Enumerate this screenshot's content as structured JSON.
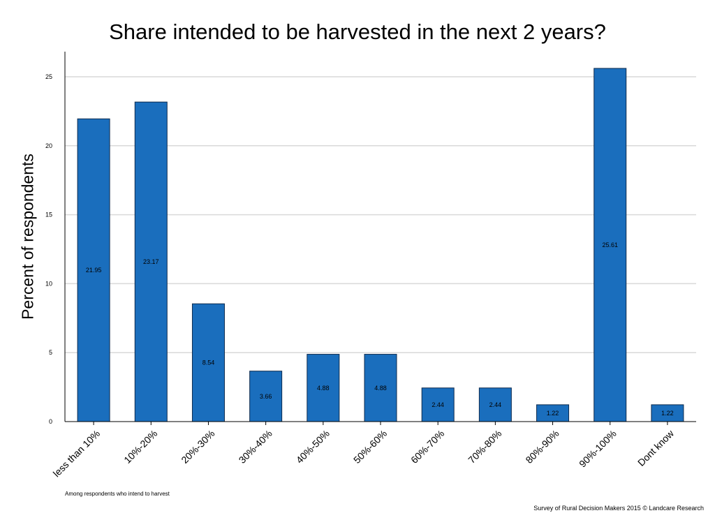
{
  "chart_data": {
    "type": "bar",
    "title": "Share intended to be harvested in the next 2 years?",
    "ylabel": "Percent of respondents",
    "xlabel": "",
    "categories": [
      "less than 10%",
      "10%-20%",
      "20%-30%",
      "30%-40%",
      "40%-50%",
      "50%-60%",
      "60%-70%",
      "70%-80%",
      "80%-90%",
      "90%-100%",
      "Dont know"
    ],
    "values": [
      21.95,
      23.17,
      8.54,
      3.66,
      4.88,
      4.88,
      2.44,
      2.44,
      1.22,
      25.61,
      1.22
    ],
    "data_labels": [
      "21.95",
      "23.17",
      "8.54",
      "3.66",
      "4.88",
      "4.88",
      "2.44",
      "2.44",
      "1.22",
      "25.61",
      "1.22"
    ],
    "yticks": [
      0,
      5,
      10,
      15,
      20,
      25
    ],
    "ylim": [
      0,
      27.5
    ],
    "grid": true,
    "bar_color": "#1a6ebd",
    "bar_edge_color": "#0d2a4d"
  },
  "footnote": "Among respondents who intend to harvest",
  "credit": "Survey of Rural Decision Makers 2015 © Landcare Research"
}
